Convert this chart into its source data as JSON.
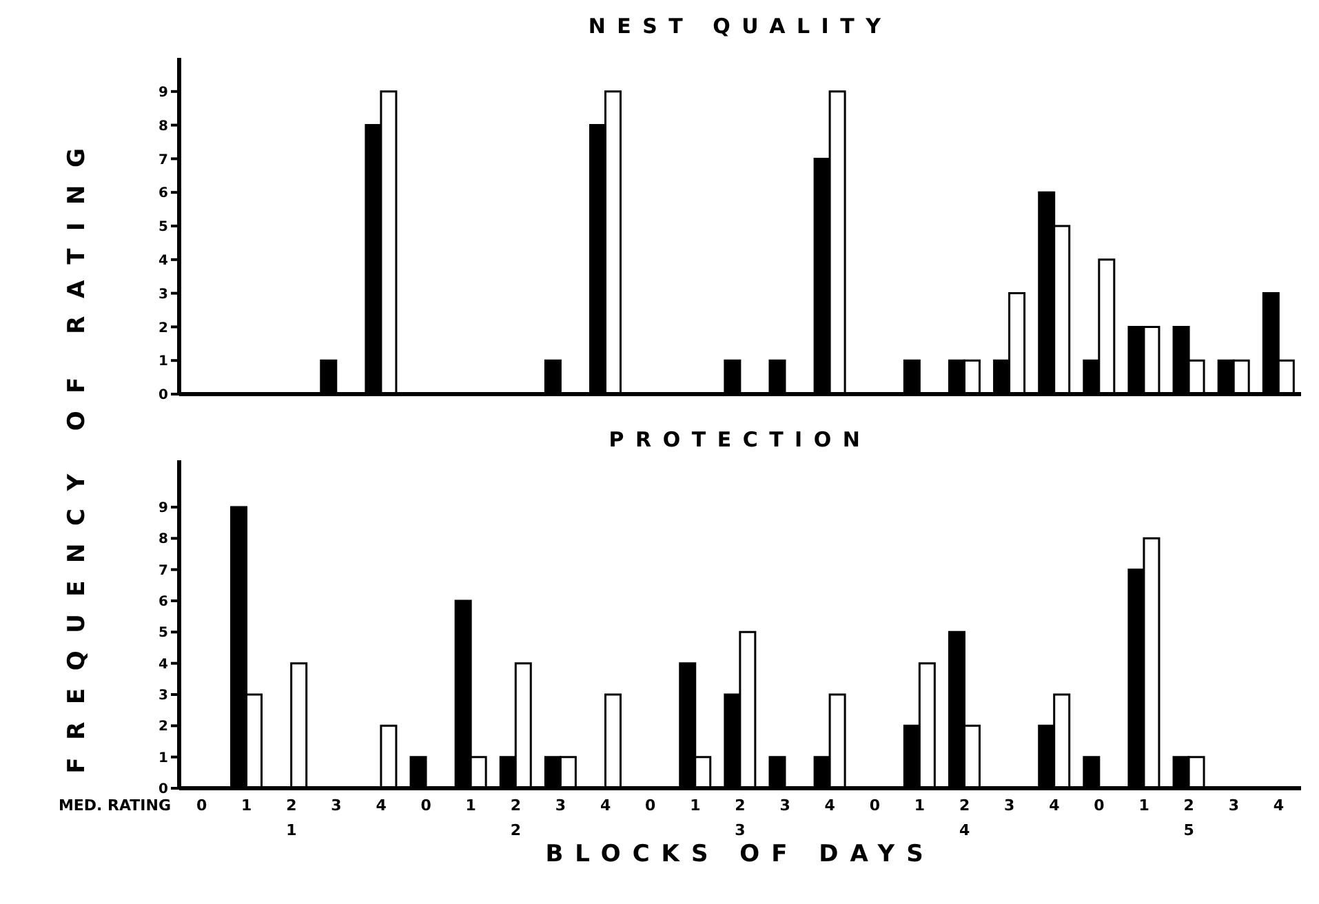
{
  "chart_data": [
    {
      "type": "bar",
      "title": "NEST QUALITY",
      "ylabel": "FREQUENCY OF RATING",
      "categories": [
        "0",
        "1",
        "2",
        "3",
        "4",
        "0",
        "1",
        "2",
        "3",
        "4",
        "0",
        "1",
        "2",
        "3",
        "4",
        "0",
        "1",
        "2",
        "3",
        "4",
        "0",
        "1",
        "2",
        "3",
        "4"
      ],
      "series": [
        {
          "color": "#000000",
          "values": [
            0,
            0,
            0,
            1,
            8,
            0,
            0,
            0,
            1,
            8,
            0,
            0,
            1,
            1,
            7,
            0,
            1,
            1,
            1,
            6,
            1,
            2,
            2,
            1,
            3
          ]
        },
        {
          "color": "#ffffff",
          "values": [
            0,
            0,
            0,
            0,
            9,
            0,
            0,
            0,
            0,
            9,
            0,
            0,
            0,
            0,
            9,
            0,
            0,
            1,
            3,
            5,
            4,
            2,
            1,
            1,
            1
          ]
        }
      ],
      "ylim": [
        0,
        10
      ],
      "yticks": [
        0,
        1,
        2,
        3,
        4,
        5,
        6,
        7,
        8,
        9
      ],
      "tick_labels": "y"
    },
    {
      "type": "bar",
      "title": "PROTECTION",
      "xlabel": "BLOCKS OF DAYS",
      "annotations": [
        "MED. RATING",
        "1",
        "2",
        "3",
        "4",
        "5"
      ],
      "categories": [
        "0",
        "1",
        "2",
        "3",
        "4",
        "0",
        "1",
        "2",
        "3",
        "4",
        "0",
        "1",
        "2",
        "3",
        "4",
        "0",
        "1",
        "2",
        "3",
        "4",
        "0",
        "1",
        "2",
        "3",
        "4"
      ],
      "series": [
        {
          "color": "#000000",
          "values": [
            0,
            9,
            0,
            0,
            0,
            1,
            6,
            1,
            1,
            0,
            0,
            4,
            3,
            1,
            1,
            0,
            2,
            5,
            0,
            2,
            1,
            7,
            1,
            0,
            0
          ]
        },
        {
          "color": "#ffffff",
          "values": [
            0,
            3,
            4,
            0,
            2,
            0,
            1,
            4,
            1,
            3,
            0,
            1,
            5,
            0,
            3,
            0,
            4,
            2,
            0,
            3,
            0,
            8,
            1,
            0,
            0
          ]
        }
      ],
      "ylim": [
        0,
        10.5
      ],
      "yticks": [
        0,
        1,
        2,
        3,
        4,
        5,
        6,
        7,
        8,
        9
      ]
    }
  ]
}
